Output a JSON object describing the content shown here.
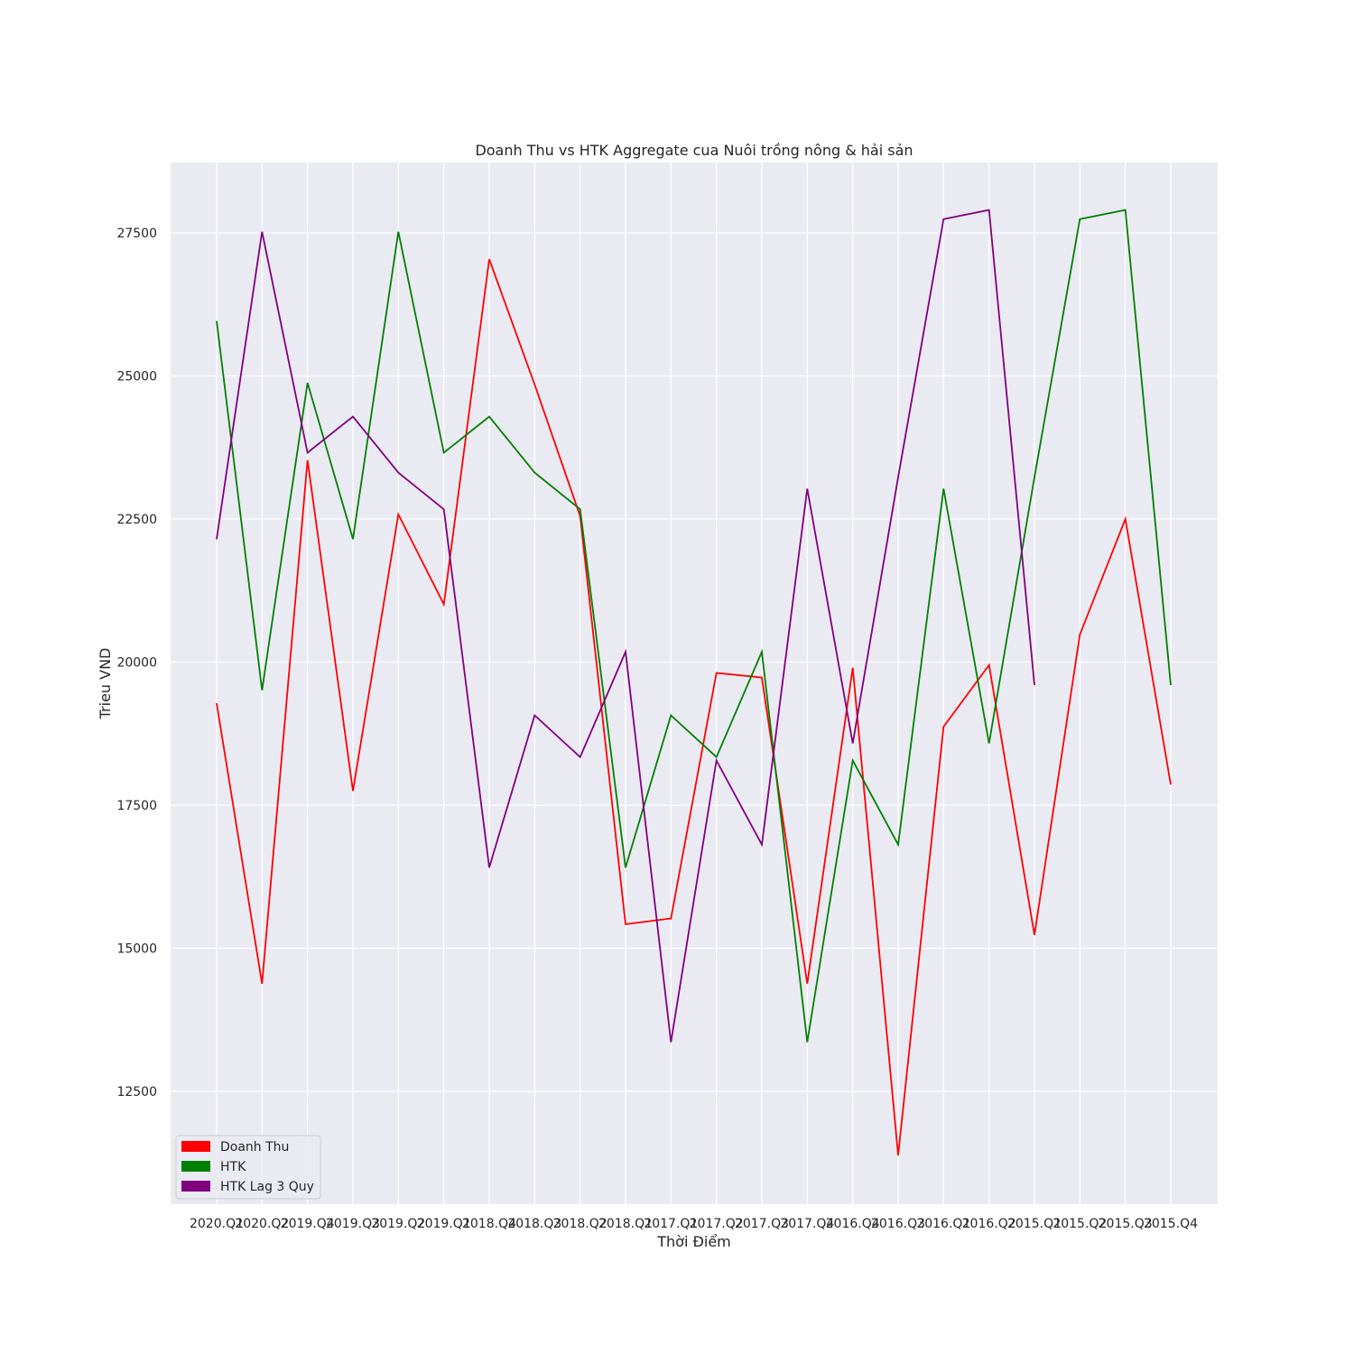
{
  "chart_data": {
    "type": "line",
    "title": "Doanh Thu vs HTK Aggregate cua Nuôi trồng nông & hải sản",
    "xlabel": "Thời Điểm",
    "ylabel": "Trieu VND",
    "categories": [
      "2020.Q1",
      "2020.Q2",
      "2019.Q4",
      "2019.Q3",
      "2019.Q2",
      "2019.Q1",
      "2018.Q4",
      "2018.Q3",
      "2018.Q2",
      "2018.Q1",
      "2017.Q1",
      "2017.Q2",
      "2017.Q3",
      "2017.Q4",
      "2016.Q4",
      "2016.Q3",
      "2016.Q1",
      "2016.Q2",
      "2015.Q1",
      "2015.Q2",
      "2015.Q3",
      "2015.Q4"
    ],
    "yticks": [
      12500,
      15000,
      17500,
      20000,
      22500,
      25000,
      27500
    ],
    "ylim": [
      11200,
      28700
    ],
    "grid": true,
    "legend_position": "lower-left",
    "series": [
      {
        "name": "Doanh Thu",
        "color": "#ff0000",
        "values": [
          19280,
          14380,
          23530,
          17750,
          22580,
          21010,
          27040,
          24850,
          22550,
          15420,
          15520,
          19810,
          19730,
          14380,
          19900,
          11380,
          18870,
          19950,
          15230,
          20480,
          22500,
          17860
        ]
      },
      {
        "name": "HTK",
        "color": "#008000",
        "values": [
          25960,
          19510,
          24880,
          22150,
          27520,
          23660,
          24290,
          23310,
          22670,
          16410,
          19070,
          18340,
          20180,
          13360,
          18280,
          16810,
          23030,
          18580,
          23230,
          27740,
          27900,
          19600
        ]
      },
      {
        "name": "HTK Lag 3 Quy",
        "color": "#800080",
        "values": [
          22150,
          27520,
          23660,
          24290,
          23310,
          22670,
          16410,
          19070,
          18340,
          20180,
          13360,
          18280,
          16810,
          23030,
          18580,
          23230,
          27740,
          27900,
          19600,
          null,
          null,
          null
        ]
      }
    ]
  }
}
